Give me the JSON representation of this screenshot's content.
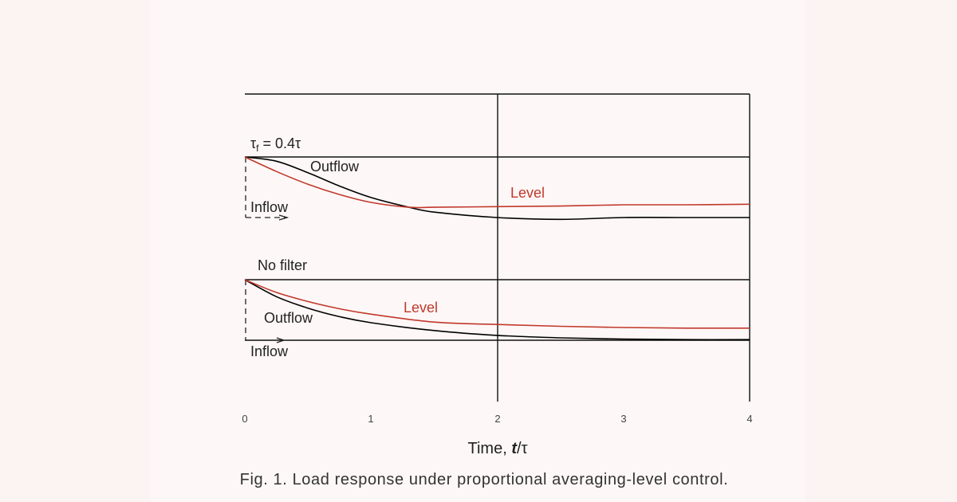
{
  "chart_data": {
    "type": "line",
    "title": "",
    "caption": "Fig. 1. Load response under proportional averaging-level control.",
    "xlabel": "Time, t/τ",
    "ylabel": "",
    "xlim": [
      0,
      4
    ],
    "x_ticks": [
      "0",
      "1",
      "2",
      "3",
      "4"
    ],
    "grid": "vertical lines at t=2 and t=4",
    "legend": "inline labels",
    "panels": [
      {
        "name": "filtered",
        "label": "τf = 0.4τ",
        "ylim_normalized": [
          0,
          1
        ],
        "x": [
          0,
          0.25,
          0.5,
          0.75,
          1.0,
          1.3,
          1.5,
          2.0,
          2.5,
          3.0,
          3.5,
          4.0
        ],
        "series": [
          {
            "name": "Level",
            "color": "#c0392b",
            "values": [
              1.0,
              0.76,
              0.55,
              0.38,
              0.25,
              0.17,
              0.17,
              0.18,
              0.19,
              0.21,
              0.21,
              0.22
            ]
          },
          {
            "name": "Outflow",
            "color": "#000000",
            "values": [
              1.0,
              0.93,
              0.74,
              0.52,
              0.33,
              0.17,
              0.09,
              0.0,
              -0.03,
              0.0,
              0.0,
              0.0
            ]
          },
          {
            "name": "Inflow",
            "color": "#000000",
            "style": "dashed step",
            "values": [
              0,
              0,
              0,
              0,
              0,
              0,
              0,
              0,
              0,
              0,
              0,
              0
            ]
          }
        ],
        "annotations": [
          "Outflow",
          "Level",
          "Inflow"
        ]
      },
      {
        "name": "no-filter",
        "label": "No filter",
        "ylim_normalized": [
          0,
          1
        ],
        "x": [
          0,
          0.25,
          0.5,
          0.75,
          1.0,
          1.5,
          2.0,
          2.5,
          3.0,
          3.5,
          4.0
        ],
        "series": [
          {
            "name": "Level",
            "color": "#c0392b",
            "values": [
              1.0,
              0.79,
              0.64,
              0.52,
              0.43,
              0.3,
              0.26,
              0.23,
              0.21,
              0.2,
              0.2
            ]
          },
          {
            "name": "Outflow",
            "color": "#000000",
            "values": [
              1.0,
              0.72,
              0.53,
              0.39,
              0.29,
              0.16,
              0.08,
              0.04,
              0.02,
              0.01,
              0.01
            ]
          },
          {
            "name": "Inflow",
            "color": "#000000",
            "style": "step",
            "values": [
              0,
              0,
              0,
              0,
              0,
              0,
              0,
              0,
              0,
              0,
              0
            ]
          }
        ],
        "annotations": [
          "Level",
          "Outflow",
          "Inflow"
        ]
      }
    ]
  },
  "labels": {
    "tau_f": "τ",
    "tau_f_sub": "f",
    "tau_f_rest": " = 0.4τ",
    "no_filter": "No filter",
    "outflow": "Outflow",
    "level": "Level",
    "inflow": "Inflow",
    "xlabel_prefix": "Time, ",
    "xlabel_var": "t",
    "xlabel_suffix": "/τ",
    "caption": "Fig. 1. Load response under proportional averaging-level control.",
    "ticks": [
      "0",
      "1",
      "2",
      "3",
      "4"
    ]
  },
  "colors": {
    "background": "#fcf3f3",
    "panel": "#fef7f7",
    "level": "#c0392b",
    "outflow": "#000000",
    "axis": "#111111"
  }
}
